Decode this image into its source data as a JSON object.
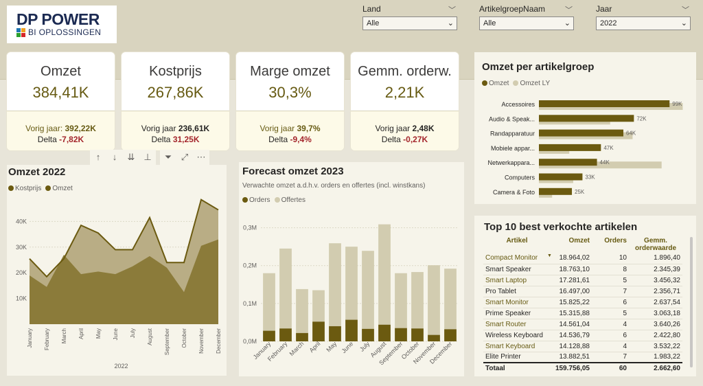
{
  "logo": {
    "title": "DP POWER",
    "subtitle": "BI OPLOSSINGEN",
    "block_colors": [
      "#1f77b4",
      "#f0a020",
      "#2ca02c",
      "#d62728"
    ]
  },
  "slicers": [
    {
      "title": "Land",
      "value": "Alle"
    },
    {
      "title": "ArtikelgroepNaam",
      "value": "Alle"
    },
    {
      "title": "Jaar",
      "value": "2022"
    }
  ],
  "cards": [
    {
      "label": "Omzet",
      "value": "384,41K",
      "prev_label": "Vorig jaar:",
      "prev_value": "392,22K",
      "delta_label": "Delta",
      "delta_value": "-7,82K",
      "prev_color": "#665a12"
    },
    {
      "label": "Kostprijs",
      "value": "267,86K",
      "prev_label": "Vorig jaar",
      "prev_value": "236,61K",
      "delta_label": "Delta",
      "delta_value": "31,25K",
      "prev_color": "#252423"
    },
    {
      "label": "Marge omzet",
      "value": "30,3%",
      "prev_label": "Vorig jaar",
      "prev_value": "39,7%",
      "delta_label": "Delta",
      "delta_value": "-9,4%",
      "prev_color": "#665a12"
    },
    {
      "label": "Gemm. orderw.",
      "value": "2,21K",
      "prev_label": "Vorig jaar",
      "prev_value": "2,48K",
      "delta_label": "Delta",
      "delta_value": "-0,27K",
      "prev_color": "#252423"
    }
  ],
  "toolbar": {
    "icons": [
      "arrow-up-icon",
      "arrow-down-icon",
      "double-arrow-down-icon",
      "expand-hierarchy-icon",
      "filter-icon",
      "focus-mode-icon",
      "more-options-icon"
    ],
    "glyphs": [
      "↑",
      "↓",
      "⇊",
      "⊥",
      "⏷",
      "⤢",
      "⋯"
    ]
  },
  "omzet2022": {
    "title": "Omzet 2022",
    "colors": {
      "kostprijs": "#8b7b3a",
      "omzet": "#b9ad85",
      "line": "#6b5a10"
    },
    "chart_data": {
      "type": "area",
      "categories": [
        "January",
        "February",
        "March",
        "April",
        "May",
        "June",
        "July",
        "August",
        "September",
        "October",
        "November",
        "December"
      ],
      "series": [
        {
          "name": "Kostprijs",
          "values": [
            19000,
            14500,
            27000,
            19500,
            20500,
            19500,
            22500,
            26500,
            22000,
            12500,
            30500,
            33000
          ]
        },
        {
          "name": "Omzet",
          "values": [
            25500,
            18500,
            25500,
            38500,
            35500,
            29000,
            29000,
            41500,
            24000,
            24000,
            48500,
            44500
          ]
        }
      ],
      "yticks": [
        "10K",
        "20K",
        "30K",
        "40K"
      ],
      "ylim": [
        0,
        50000
      ],
      "xlabel": "2022"
    }
  },
  "forecast": {
    "title": "Forecast omzet 2023",
    "subtitle": "Verwachte omzet a.d.h.v. orders en offertes (incl. winstkans)",
    "colors": {
      "orders": "#6b5a10",
      "offertes": "#d2ccb0"
    },
    "chart_data": {
      "type": "bar",
      "categories": [
        "January",
        "February",
        "March",
        "April",
        "May",
        "June",
        "July",
        "August",
        "September",
        "October",
        "November",
        "December"
      ],
      "series": [
        {
          "name": "Orders",
          "values": [
            0.028,
            0.034,
            0.022,
            0.052,
            0.04,
            0.057,
            0.033,
            0.044,
            0.035,
            0.034,
            0.017,
            0.032
          ]
        },
        {
          "name": "Offertes",
          "values": [
            0.152,
            0.211,
            0.116,
            0.083,
            0.219,
            0.193,
            0.206,
            0.265,
            0.145,
            0.149,
            0.184,
            0.16
          ]
        }
      ],
      "yticks": [
        "0,0M",
        "0,1M",
        "0,2M",
        "0,3M"
      ],
      "ylim": [
        0,
        0.35
      ]
    }
  },
  "artikelgroep": {
    "title": "Omzet per artikelgroep",
    "colors": {
      "omzet": "#6b5a10",
      "omzet_ly": "#d2ccb0"
    },
    "chart_data": {
      "type": "bar",
      "orientation": "horizontal",
      "categories": [
        "Accessoires",
        "Audio & Speak...",
        "Randapparatuur",
        "Mobiele appar...",
        "Netwerkappara...",
        "Computers",
        "Camera & Foto"
      ],
      "series": [
        {
          "name": "Omzet",
          "values": [
            99,
            72,
            64,
            47,
            44,
            33,
            25
          ],
          "labels": [
            "99K",
            "72K",
            "64K",
            "47K",
            "44K",
            "33K",
            "25K"
          ]
        },
        {
          "name": "Omzet LY",
          "values": [
            109,
            54,
            71,
            23,
            93,
            26,
            10
          ]
        }
      ],
      "xlim": [
        0,
        115
      ]
    }
  },
  "top10": {
    "title": "Top 10 best verkochte artikelen",
    "columns": [
      "Artikel",
      "Omzet",
      "Orders",
      "Gemm. orderwaarde"
    ],
    "rows": [
      [
        "Compact Monitor",
        "18.964,02",
        "10",
        "1.896,40"
      ],
      [
        "Smart Speaker",
        "18.763,10",
        "8",
        "2.345,39"
      ],
      [
        "Smart Laptop",
        "17.281,61",
        "5",
        "3.456,32"
      ],
      [
        "Pro Tablet",
        "16.497,00",
        "7",
        "2.356,71"
      ],
      [
        "Smart Monitor",
        "15.825,22",
        "6",
        "2.637,54"
      ],
      [
        "Prime Speaker",
        "15.315,88",
        "5",
        "3.063,18"
      ],
      [
        "Smart Router",
        "14.561,04",
        "4",
        "3.640,26"
      ],
      [
        "Wireless Keyboard",
        "14.536,79",
        "6",
        "2.422,80"
      ],
      [
        "Smart Keyboard",
        "14.128,88",
        "4",
        "3.532,22"
      ],
      [
        "Elite Printer",
        "13.882,51",
        "7",
        "1.983,22"
      ]
    ],
    "total": [
      "Totaal",
      "159.756,05",
      "60",
      "2.662,60"
    ]
  }
}
